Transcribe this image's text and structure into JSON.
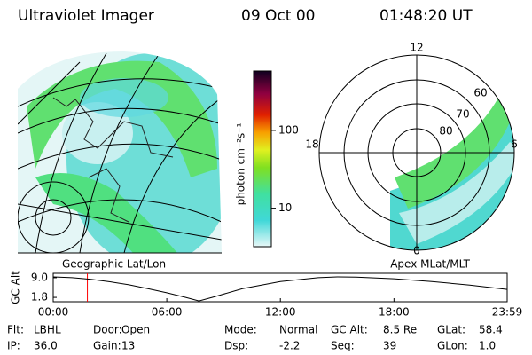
{
  "header": {
    "title": "Ultraviolet Imager",
    "date": "09 Oct 00",
    "time": "01:48:20 UT"
  },
  "colorbar": {
    "label": "photon cm⁻²s⁻¹",
    "log": true,
    "clim": [
      3.2,
      580
    ],
    "ticks": [
      10,
      100
    ]
  },
  "polar": {
    "labels": [
      "12",
      "18",
      "6",
      "0",
      "60",
      "70",
      "80"
    ]
  },
  "panel_labels": [
    "Geographic Lat/Lon",
    "Apex MLat/MLT"
  ],
  "chart_data": {
    "type": "line",
    "ylabel": "GC Alt",
    "x": [
      0,
      1,
      2,
      3,
      4,
      5,
      6,
      7,
      7.7,
      8.5,
      10,
      12,
      14,
      15,
      16,
      18,
      20,
      22,
      23.98
    ],
    "series": [
      {
        "color": "#000000",
        "values": [
          9.3,
          9.0,
          8.4,
          7.5,
          6.4,
          5.0,
          3.5,
          1.8,
          0.5,
          2.0,
          5.0,
          7.6,
          9.0,
          9.3,
          9.2,
          8.6,
          7.6,
          6.3,
          4.7
        ]
      }
    ],
    "xlim": [
      0,
      23.98
    ],
    "ylim": [
      0.2,
      10.6
    ],
    "xticks": [
      {
        "value": 0,
        "label": "00:00"
      },
      {
        "value": 6,
        "label": "06:00"
      },
      {
        "value": 12,
        "label": "12:00"
      },
      {
        "value": 18,
        "label": "18:00"
      },
      {
        "value": 23.98,
        "label": "23:59"
      }
    ],
    "yticks": [
      {
        "value": 9,
        "label": "9.0"
      },
      {
        "value": 1.8,
        "label": "1.8"
      }
    ],
    "marker_x": 1.806,
    "marker_color": "#ff0000"
  },
  "footer": [
    {
      "label": "Flt:",
      "value": "LBHL"
    },
    {
      "label": "Door:",
      "value": "Open"
    },
    {
      "label": "Mode:",
      "value": "Normal"
    },
    {
      "label": "GC Alt:",
      "value": "8.5 Re"
    },
    {
      "label": "GLat:",
      "value": "58.4"
    },
    {
      "label": "IP:",
      "value": "36.0"
    },
    {
      "label": "Gain:",
      "value": "13"
    },
    {
      "label": "Dsp:",
      "value": "-2.2"
    },
    {
      "label": "Seq:",
      "value": "39"
    },
    {
      "label": "GLon:",
      "value": "1.0"
    }
  ]
}
